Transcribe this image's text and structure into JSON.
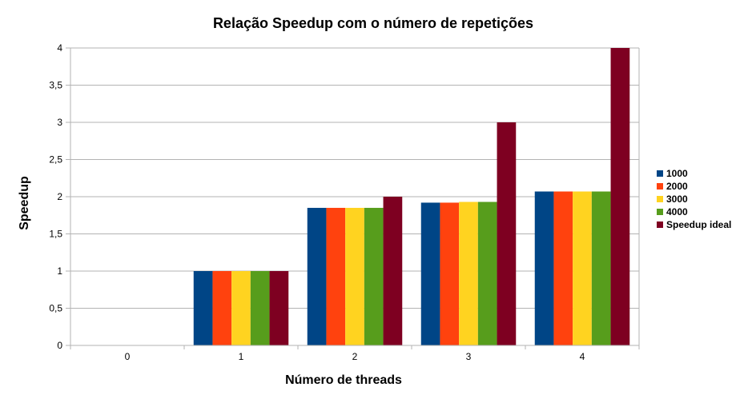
{
  "chart_data": {
    "type": "bar",
    "title": "Relação Speedup com o número de repetições",
    "xlabel": "Número de threads",
    "ylabel": "Speedup",
    "categories": [
      "0",
      "1",
      "2",
      "3",
      "4"
    ],
    "y_tick_labels": [
      "0",
      "0,5",
      "1",
      "1,5",
      "2",
      "2,5",
      "3",
      "3,5",
      "4"
    ],
    "ylim": [
      0,
      4
    ],
    "grid": true,
    "legend_position": "right",
    "series": [
      {
        "name": "1000",
        "color": "#004586",
        "values": [
          0,
          1.0,
          1.85,
          1.92,
          2.07
        ]
      },
      {
        "name": "2000",
        "color": "#ff420e",
        "values": [
          0,
          1.0,
          1.85,
          1.92,
          2.07
        ]
      },
      {
        "name": "3000",
        "color": "#ffd320",
        "values": [
          0,
          1.0,
          1.85,
          1.93,
          2.07
        ]
      },
      {
        "name": "4000",
        "color": "#579d1c",
        "values": [
          0,
          1.0,
          1.85,
          1.93,
          2.07
        ]
      },
      {
        "name": "Speedup ideal",
        "color": "#7e0021",
        "values": [
          0,
          1.0,
          2.0,
          3.0,
          4.0
        ]
      }
    ]
  }
}
